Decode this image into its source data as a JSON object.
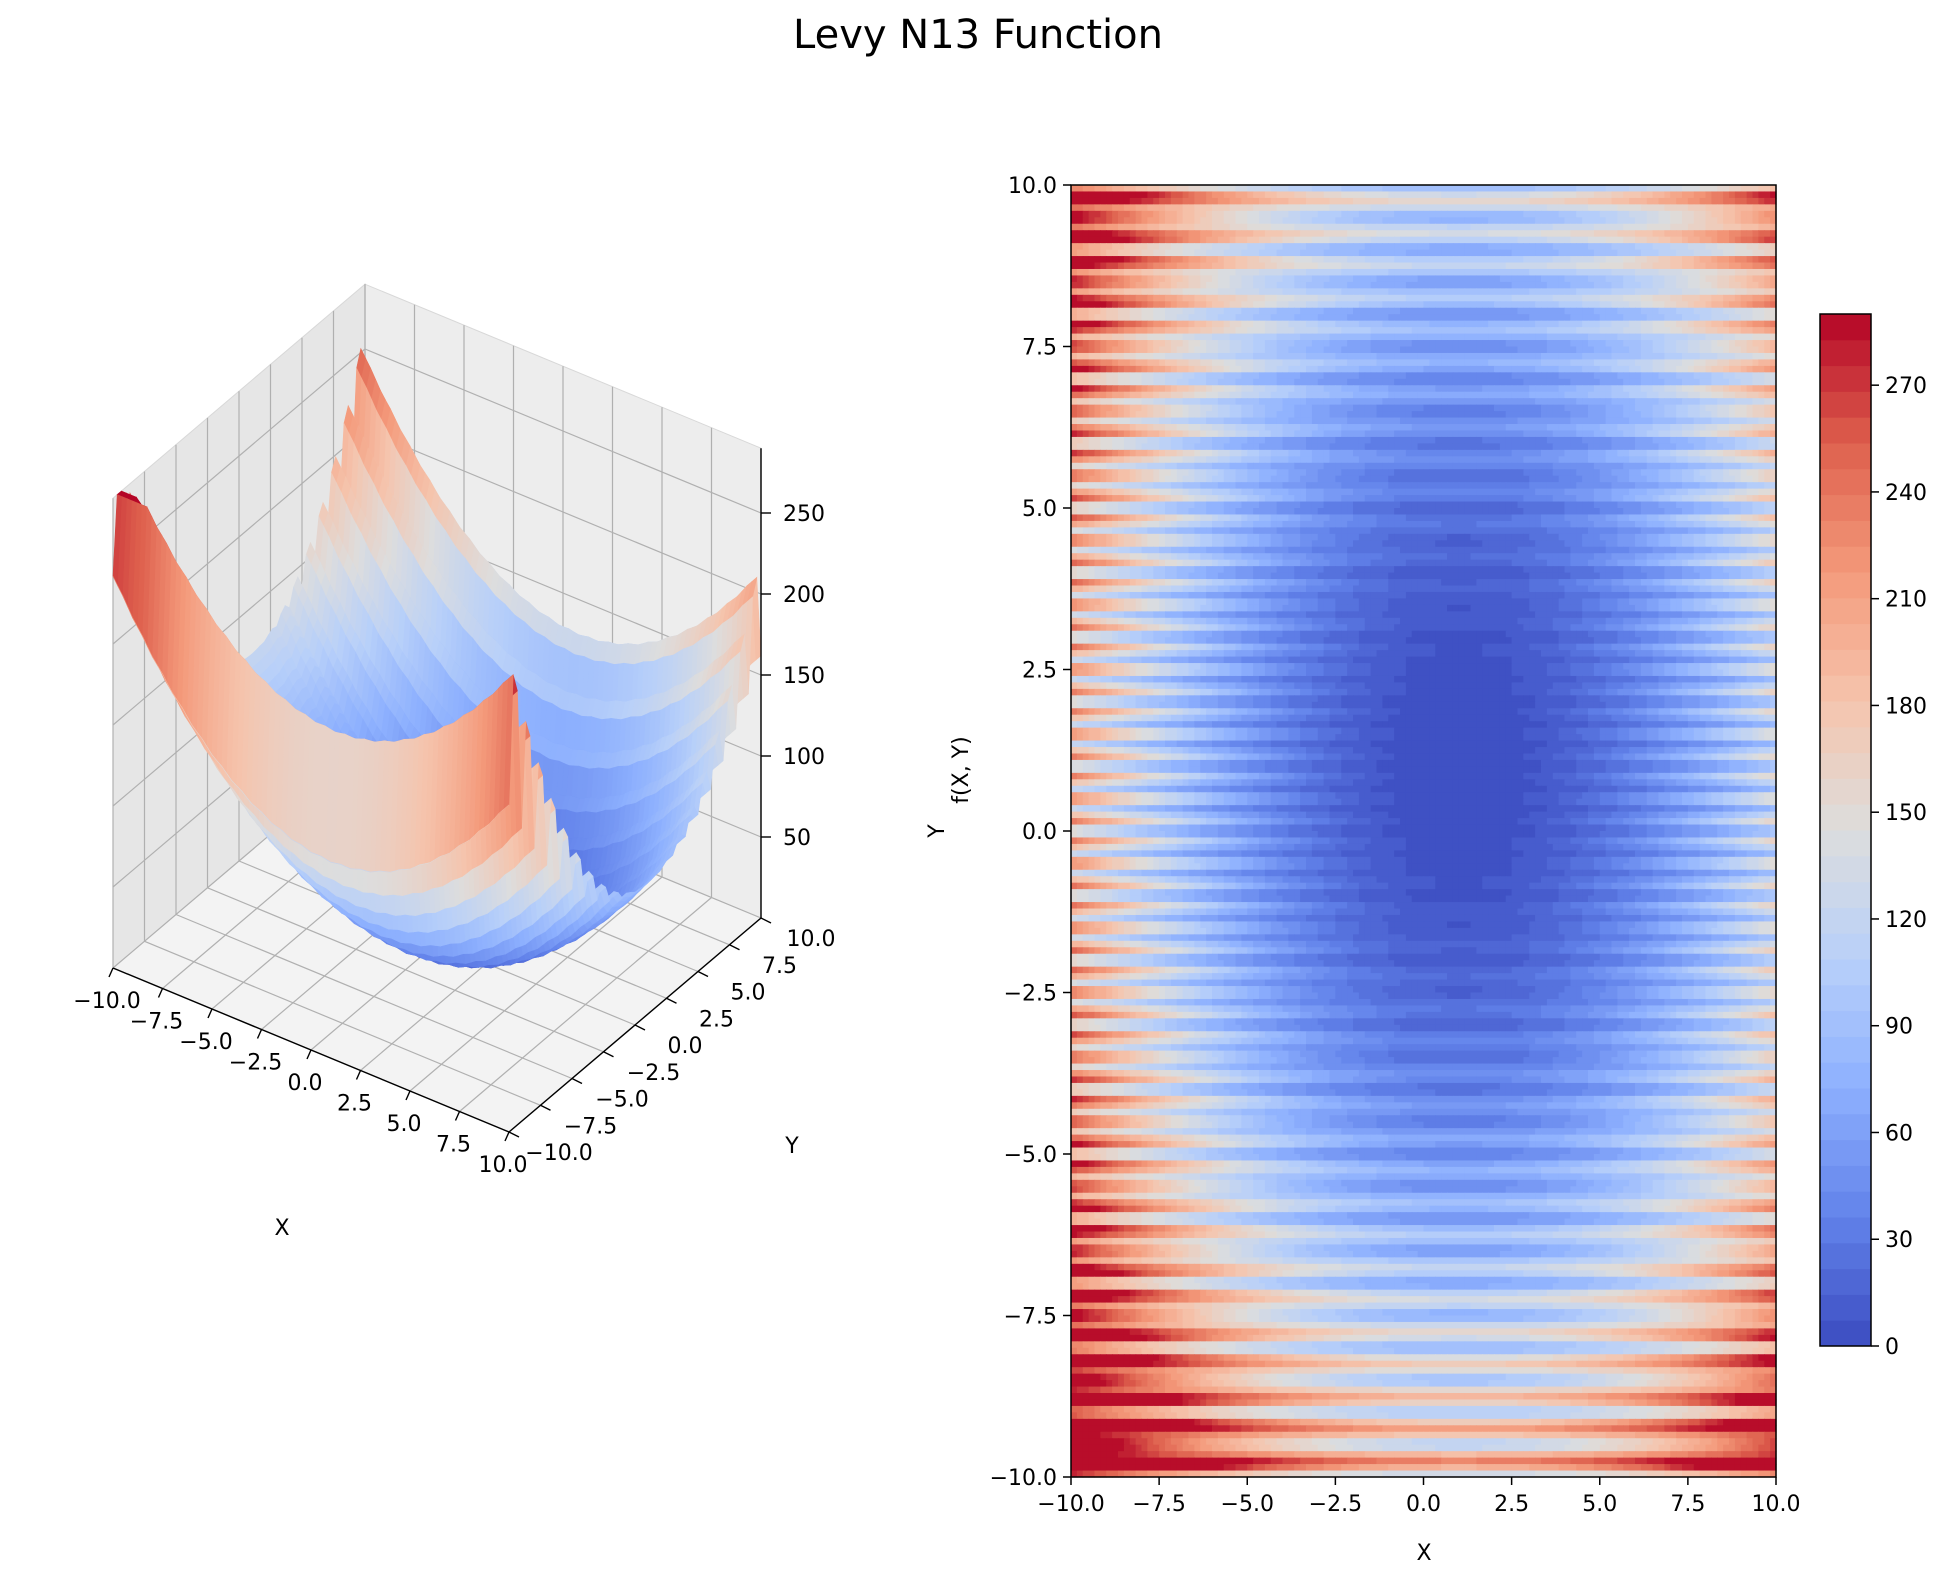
{
  "chart_data": [
    {
      "type": "surface3d",
      "function_name": "Levy N13",
      "xlabel": "X",
      "ylabel": "Y",
      "zlabel": "f(X, Y)",
      "x_range": [
        -10,
        10
      ],
      "y_range": [
        -10,
        10
      ],
      "z_range": [
        0,
        290
      ],
      "x_ticks": [
        "−10.0",
        "−7.5",
        "−5.0",
        "−2.5",
        "0.0",
        "2.5",
        "5.0",
        "7.5",
        "10.0"
      ],
      "y_ticks": [
        "−10.0",
        "−7.5",
        "−5.0",
        "−2.5",
        "0.0",
        "2.5",
        "5.0",
        "7.5",
        "10.0"
      ],
      "z_ticks": [
        "50",
        "100",
        "150",
        "200",
        "250"
      ],
      "colormap": "coolwarm",
      "grid": true
    },
    {
      "type": "heatmap",
      "style": "filled contour",
      "xlabel": "X",
      "ylabel": "Y",
      "xlim": [
        -10,
        10
      ],
      "ylim": [
        -10,
        10
      ],
      "x_ticks": [
        "−10.0",
        "−7.5",
        "−5.0",
        "−2.5",
        "0.0",
        "2.5",
        "5.0",
        "7.5",
        "10.0"
      ],
      "y_ticks": [
        "−10.0",
        "−7.5",
        "−5.0",
        "−2.5",
        "0.0",
        "2.5",
        "5.0",
        "7.5",
        "10.0"
      ],
      "z_min": 0,
      "z_max": 290,
      "colormap": "coolwarm",
      "colorbar": {
        "ticks": [
          "0",
          "30",
          "60",
          "90",
          "120",
          "150",
          "180",
          "210",
          "240",
          "270"
        ],
        "levels": 40,
        "placement": "right"
      }
    }
  ],
  "figure": {
    "title": "Levy N13 Function"
  },
  "colors": {
    "cmap_low": "#3b4cc0",
    "cmap_mid": "#dddddd",
    "cmap_high": "#b40426",
    "pane": "#f2f2f2",
    "grid": "#b0b0b0"
  }
}
